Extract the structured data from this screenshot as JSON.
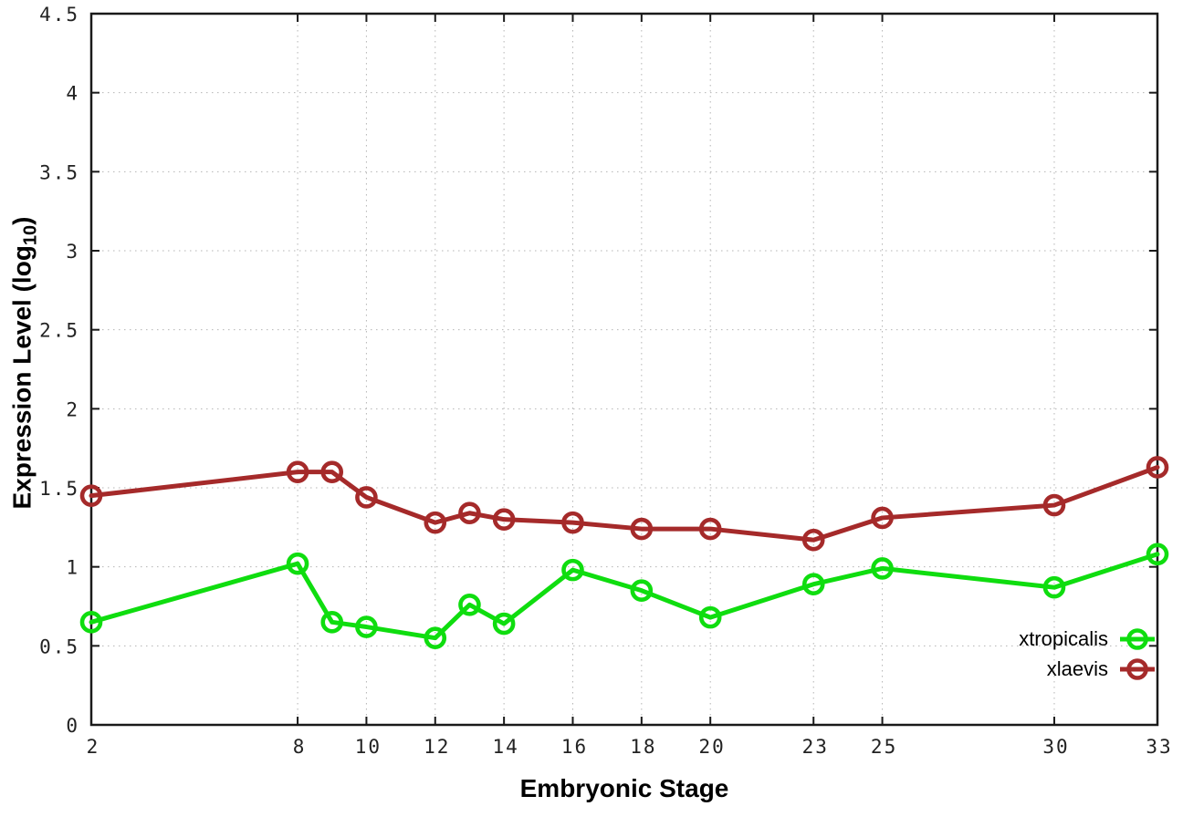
{
  "chart_data": {
    "type": "line",
    "title": "",
    "xlabel": "Embryonic Stage",
    "ylabel_main": "Expression Level (log",
    "ylabel_sub": "10",
    "ylabel_close": ")",
    "xlim": [
      2,
      33
    ],
    "ylim": [
      0,
      4.5
    ],
    "x_ticks": [
      2,
      8,
      10,
      12,
      14,
      16,
      18,
      20,
      23,
      25,
      30,
      33
    ],
    "y_ticks": [
      0,
      0.5,
      1,
      1.5,
      2,
      2.5,
      3,
      3.5,
      4,
      4.5
    ],
    "grid": true,
    "legend_position": "bottom-right",
    "x": [
      2,
      8,
      9,
      10,
      12,
      13,
      14,
      16,
      18,
      20,
      23,
      25,
      30,
      33
    ],
    "series": [
      {
        "name": "xtropicalis",
        "color": "#0fdd0f",
        "values": [
          0.65,
          1.02,
          0.65,
          0.62,
          0.55,
          0.76,
          0.64,
          0.98,
          0.85,
          0.68,
          0.89,
          0.99,
          0.87,
          1.08
        ]
      },
      {
        "name": "xlaevis",
        "color": "#a52a2a",
        "values": [
          1.45,
          1.6,
          1.6,
          1.44,
          1.28,
          1.34,
          1.3,
          1.28,
          1.24,
          1.24,
          1.17,
          1.31,
          1.39,
          1.63
        ]
      }
    ],
    "colors": {
      "border": "#1a1a1a",
      "gridline": "#b4b4b4",
      "tick_label": "#222222"
    }
  }
}
